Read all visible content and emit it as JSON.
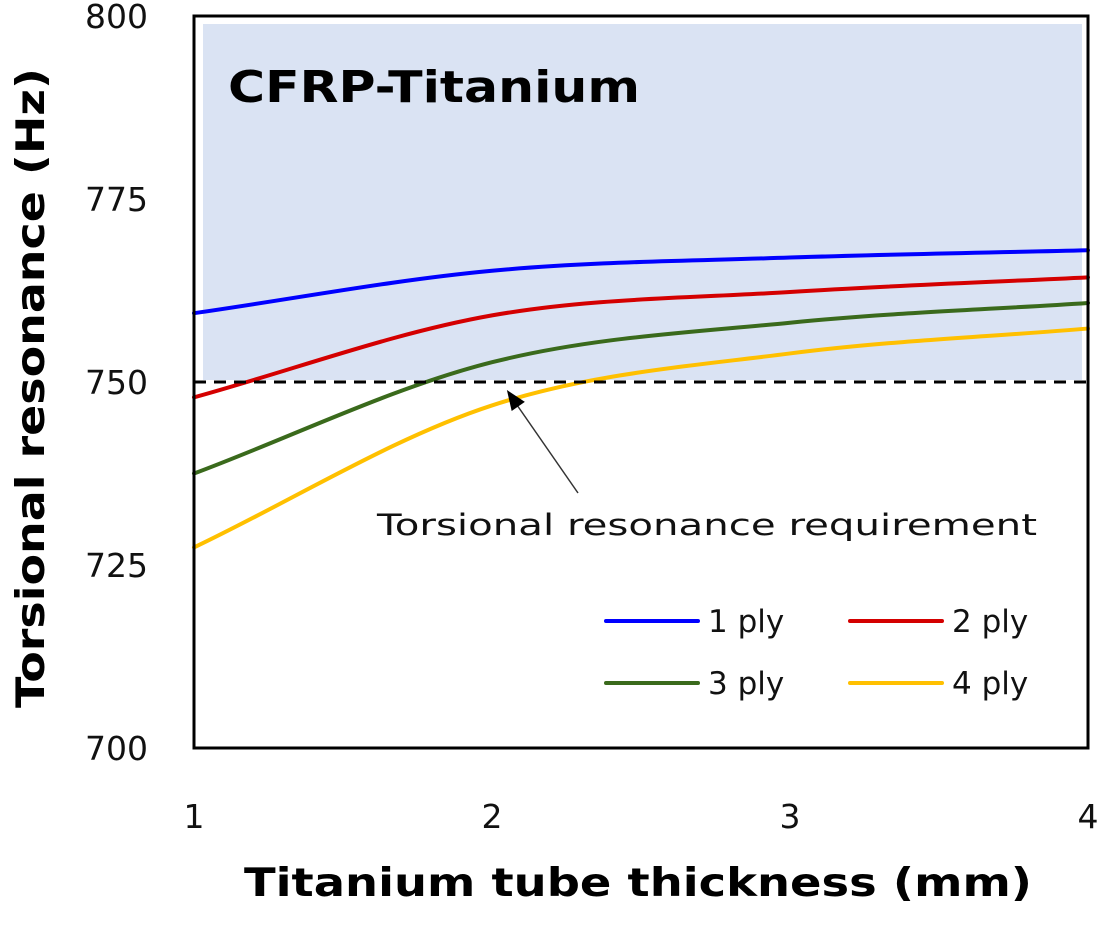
{
  "chart_data": {
    "type": "line",
    "title": "CFRP-Titanium",
    "xlabel": "Titanium tube thickness (mm)",
    "ylabel": "Torsional resonance (Hz)",
    "xlim": [
      1,
      4
    ],
    "ylim": [
      700,
      800
    ],
    "xticks": [
      1,
      2,
      3,
      4
    ],
    "yticks": [
      700,
      725,
      750,
      775,
      800
    ],
    "xtick_labels": [
      "1",
      "2",
      "3",
      "4"
    ],
    "ytick_labels": [
      "700",
      "725",
      "750",
      "775",
      "800"
    ],
    "grid": false,
    "legend_position": "bottom-right",
    "x": [
      1,
      2,
      3,
      4
    ],
    "series": [
      {
        "name": "1 ply",
        "color": "#0000ff",
        "values": [
          759.4,
          765.2,
          767.0,
          768.0
        ]
      },
      {
        "name": "2 ply",
        "color": "#d40000",
        "values": [
          747.9,
          759.1,
          762.3,
          764.3
        ]
      },
      {
        "name": "3 ply",
        "color": "#3a6a1c",
        "values": [
          737.5,
          752.7,
          758.1,
          760.8
        ]
      },
      {
        "name": "4 ply",
        "color": "#ffc000",
        "values": [
          727.4,
          746.8,
          753.9,
          757.3
        ]
      }
    ],
    "threshold": {
      "value": 750,
      "style": "dashed",
      "label": "Torsional resonance requirement"
    },
    "shaded_region": {
      "from": 750,
      "to": 800,
      "color": "#dae3f3"
    },
    "annotation": {
      "text": "Torsional resonance requirement",
      "arrow_target": {
        "x": 2.05,
        "y": 750
      }
    }
  }
}
